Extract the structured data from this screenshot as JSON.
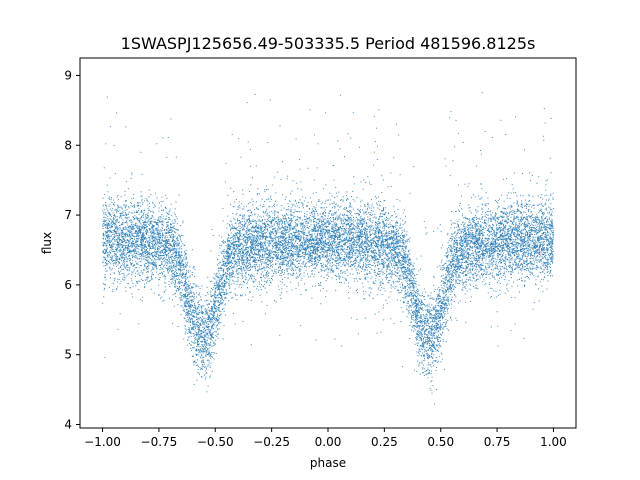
{
  "chart_data": {
    "type": "scatter",
    "title": "1SWASPJ125656.49-503335.5 Period 481596.8125s",
    "xlabel": "phase",
    "ylabel": "flux",
    "xlim": [
      -1.1,
      1.1
    ],
    "ylim": [
      3.95,
      9.25
    ],
    "xticks": [
      -1.0,
      -0.75,
      -0.5,
      -0.25,
      0.0,
      0.25,
      0.5,
      0.75,
      1.0
    ],
    "xtick_labels": [
      "−1.00",
      "−0.75",
      "−0.50",
      "−0.25",
      "0.00",
      "0.25",
      "0.50",
      "0.75",
      "1.00"
    ],
    "yticks": [
      4,
      5,
      6,
      7,
      8,
      9
    ],
    "ytick_labels": [
      "4",
      "5",
      "6",
      "7",
      "8",
      "9"
    ],
    "grid": false,
    "marker_color": "#1f77b4",
    "point_count": 14000,
    "phase_range": [
      -1.0,
      1.0
    ],
    "baseline_flux": 6.65,
    "baseline_scatter": 0.28,
    "eclipse_profile": [
      {
        "phase": -0.6,
        "min_flux": 5.3,
        "half_width": 0.08
      },
      {
        "phase": 0.4,
        "min_flux": 5.3,
        "half_width": 0.08
      }
    ],
    "profile_x": [
      -1.0,
      -0.85,
      -0.7,
      -0.66,
      -0.62,
      -0.58,
      -0.55,
      -0.52,
      -0.48,
      -0.44,
      -0.4,
      -0.25,
      0.0,
      0.25,
      0.3,
      0.34,
      0.38,
      0.42,
      0.45,
      0.48,
      0.52,
      0.56,
      0.6,
      0.75,
      1.0
    ],
    "profile_y": [
      6.65,
      6.65,
      6.55,
      6.35,
      5.75,
      5.3,
      5.25,
      5.4,
      5.9,
      6.4,
      6.55,
      6.6,
      6.65,
      6.55,
      6.5,
      6.35,
      5.75,
      5.3,
      5.25,
      5.4,
      5.9,
      6.4,
      6.55,
      6.6,
      6.65
    ]
  }
}
